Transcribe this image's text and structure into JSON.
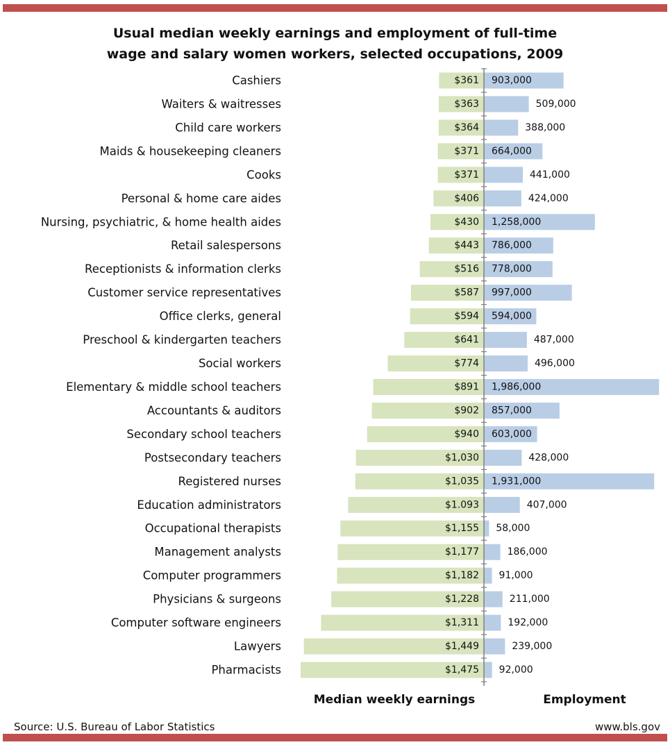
{
  "colors": {
    "accent_rule": "#c0504d",
    "earnings_bar": "#d7e4bd",
    "employment_bar": "#b9cde5",
    "axis": "#7f7f7f"
  },
  "header": {
    "title_line1": "Usual median weekly earnings and employment of full-time",
    "title_line2": "wage and salary women workers, selected occupations, 2009"
  },
  "footer": {
    "source": "Source: U.S. Bureau of Labor Statistics",
    "site": "www.bls.gov"
  },
  "chart_data": {
    "type": "bar",
    "orientation": "horizontal",
    "layout": "back-to-back",
    "categories": [
      "Cashiers",
      "Waiters & waitresses",
      "Child care workers",
      "Maids & housekeeping cleaners",
      "Cooks",
      "Personal & home care aides",
      "Nursing, psychiatric, & home health aides",
      "Retail salespersons",
      "Receptionists & information clerks",
      "Customer service representatives",
      "Office clerks, general",
      "Preschool & kindergarten teachers",
      "Social workers",
      "Elementary & middle school teachers",
      "Accountants & auditors",
      "Secondary school teachers",
      "Postsecondary teachers",
      "Registered nurses",
      "Education administrators",
      "Occupational therapists",
      "Management analysts",
      "Computer programmers",
      "Physicians & surgeons",
      "Computer software engineers",
      "Lawyers",
      "Pharmacists"
    ],
    "series": [
      {
        "name": "Median weekly earnings",
        "values": [
          361,
          363,
          364,
          371,
          371,
          406,
          430,
          443,
          516,
          587,
          594,
          641,
          774,
          891,
          902,
          940,
          1030,
          1035,
          1093,
          1155,
          1177,
          1182,
          1228,
          1311,
          1449,
          1475
        ],
        "labels": [
          "$361",
          "$363",
          "$364",
          "$371",
          "$371",
          "$406",
          "$430",
          "$443",
          "$516",
          "$587",
          "$594",
          "$641",
          "$774",
          "$891",
          "$902",
          "$940",
          "$1,030",
          "$1,035",
          "$1.093",
          "$1,155",
          "$1,177",
          "$1,182",
          "$1,228",
          "$1,311",
          "$1,449",
          "$1,475"
        ]
      },
      {
        "name": "Employment",
        "values": [
          903000,
          509000,
          388000,
          664000,
          441000,
          424000,
          1258000,
          786000,
          778000,
          997000,
          594000,
          487000,
          496000,
          1986000,
          857000,
          603000,
          428000,
          1931000,
          407000,
          58000,
          186000,
          91000,
          211000,
          192000,
          239000,
          92000
        ],
        "labels": [
          "903,000",
          "509,000",
          "388,000",
          "664,000",
          "441,000",
          "424,000",
          "1,258,000",
          "786,000",
          "778,000",
          "997,000",
          "594,000",
          "487,000",
          "496,000",
          "1,986,000",
          "857,000",
          "603,000",
          "428,000",
          "1,931,000",
          "407,000",
          "58,000",
          "186,000",
          "91,000",
          "211,000",
          "192,000",
          "239,000",
          "92,000"
        ]
      }
    ],
    "axis_labels": {
      "left": "Median weekly earnings",
      "right": "Employment"
    },
    "xlim_earnings": [
      0,
      1475
    ],
    "xlim_employment": [
      0,
      2000000
    ],
    "grid": false,
    "legend": "none"
  }
}
